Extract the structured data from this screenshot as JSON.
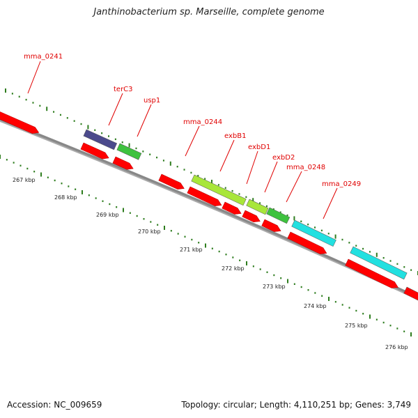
{
  "title": "Janthinobacterium sp. Marseille, complete genome",
  "footer": {
    "accession": "Accession: NC_009659",
    "summary": "Topology: circular; Length: 4,110,251 bp; Genes: 3,749"
  },
  "colors": {
    "cds_forward": "#ff0000",
    "cds_reverse": "#ff0000",
    "backbone": "#888888",
    "tick": "#2e7d1e",
    "label": "#e00000",
    "navy": "#4b4a8c",
    "green": "#3ec23e",
    "lime": "#a8e63a",
    "cyan": "#22e0e0"
  },
  "gene_labels": [
    "mma_0241",
    "terC3",
    "usp1",
    "mma_0244",
    "exbB1",
    "exbD1",
    "exbD2",
    "mma_0248",
    "mma_0249"
  ],
  "kbp_labels": [
    "267 kbp",
    "268 kbp",
    "269 kbp",
    "270 kbp",
    "271 kbp",
    "272 kbp",
    "273 kbp",
    "274 kbp",
    "275 kbp",
    "276 kbp"
  ]
}
